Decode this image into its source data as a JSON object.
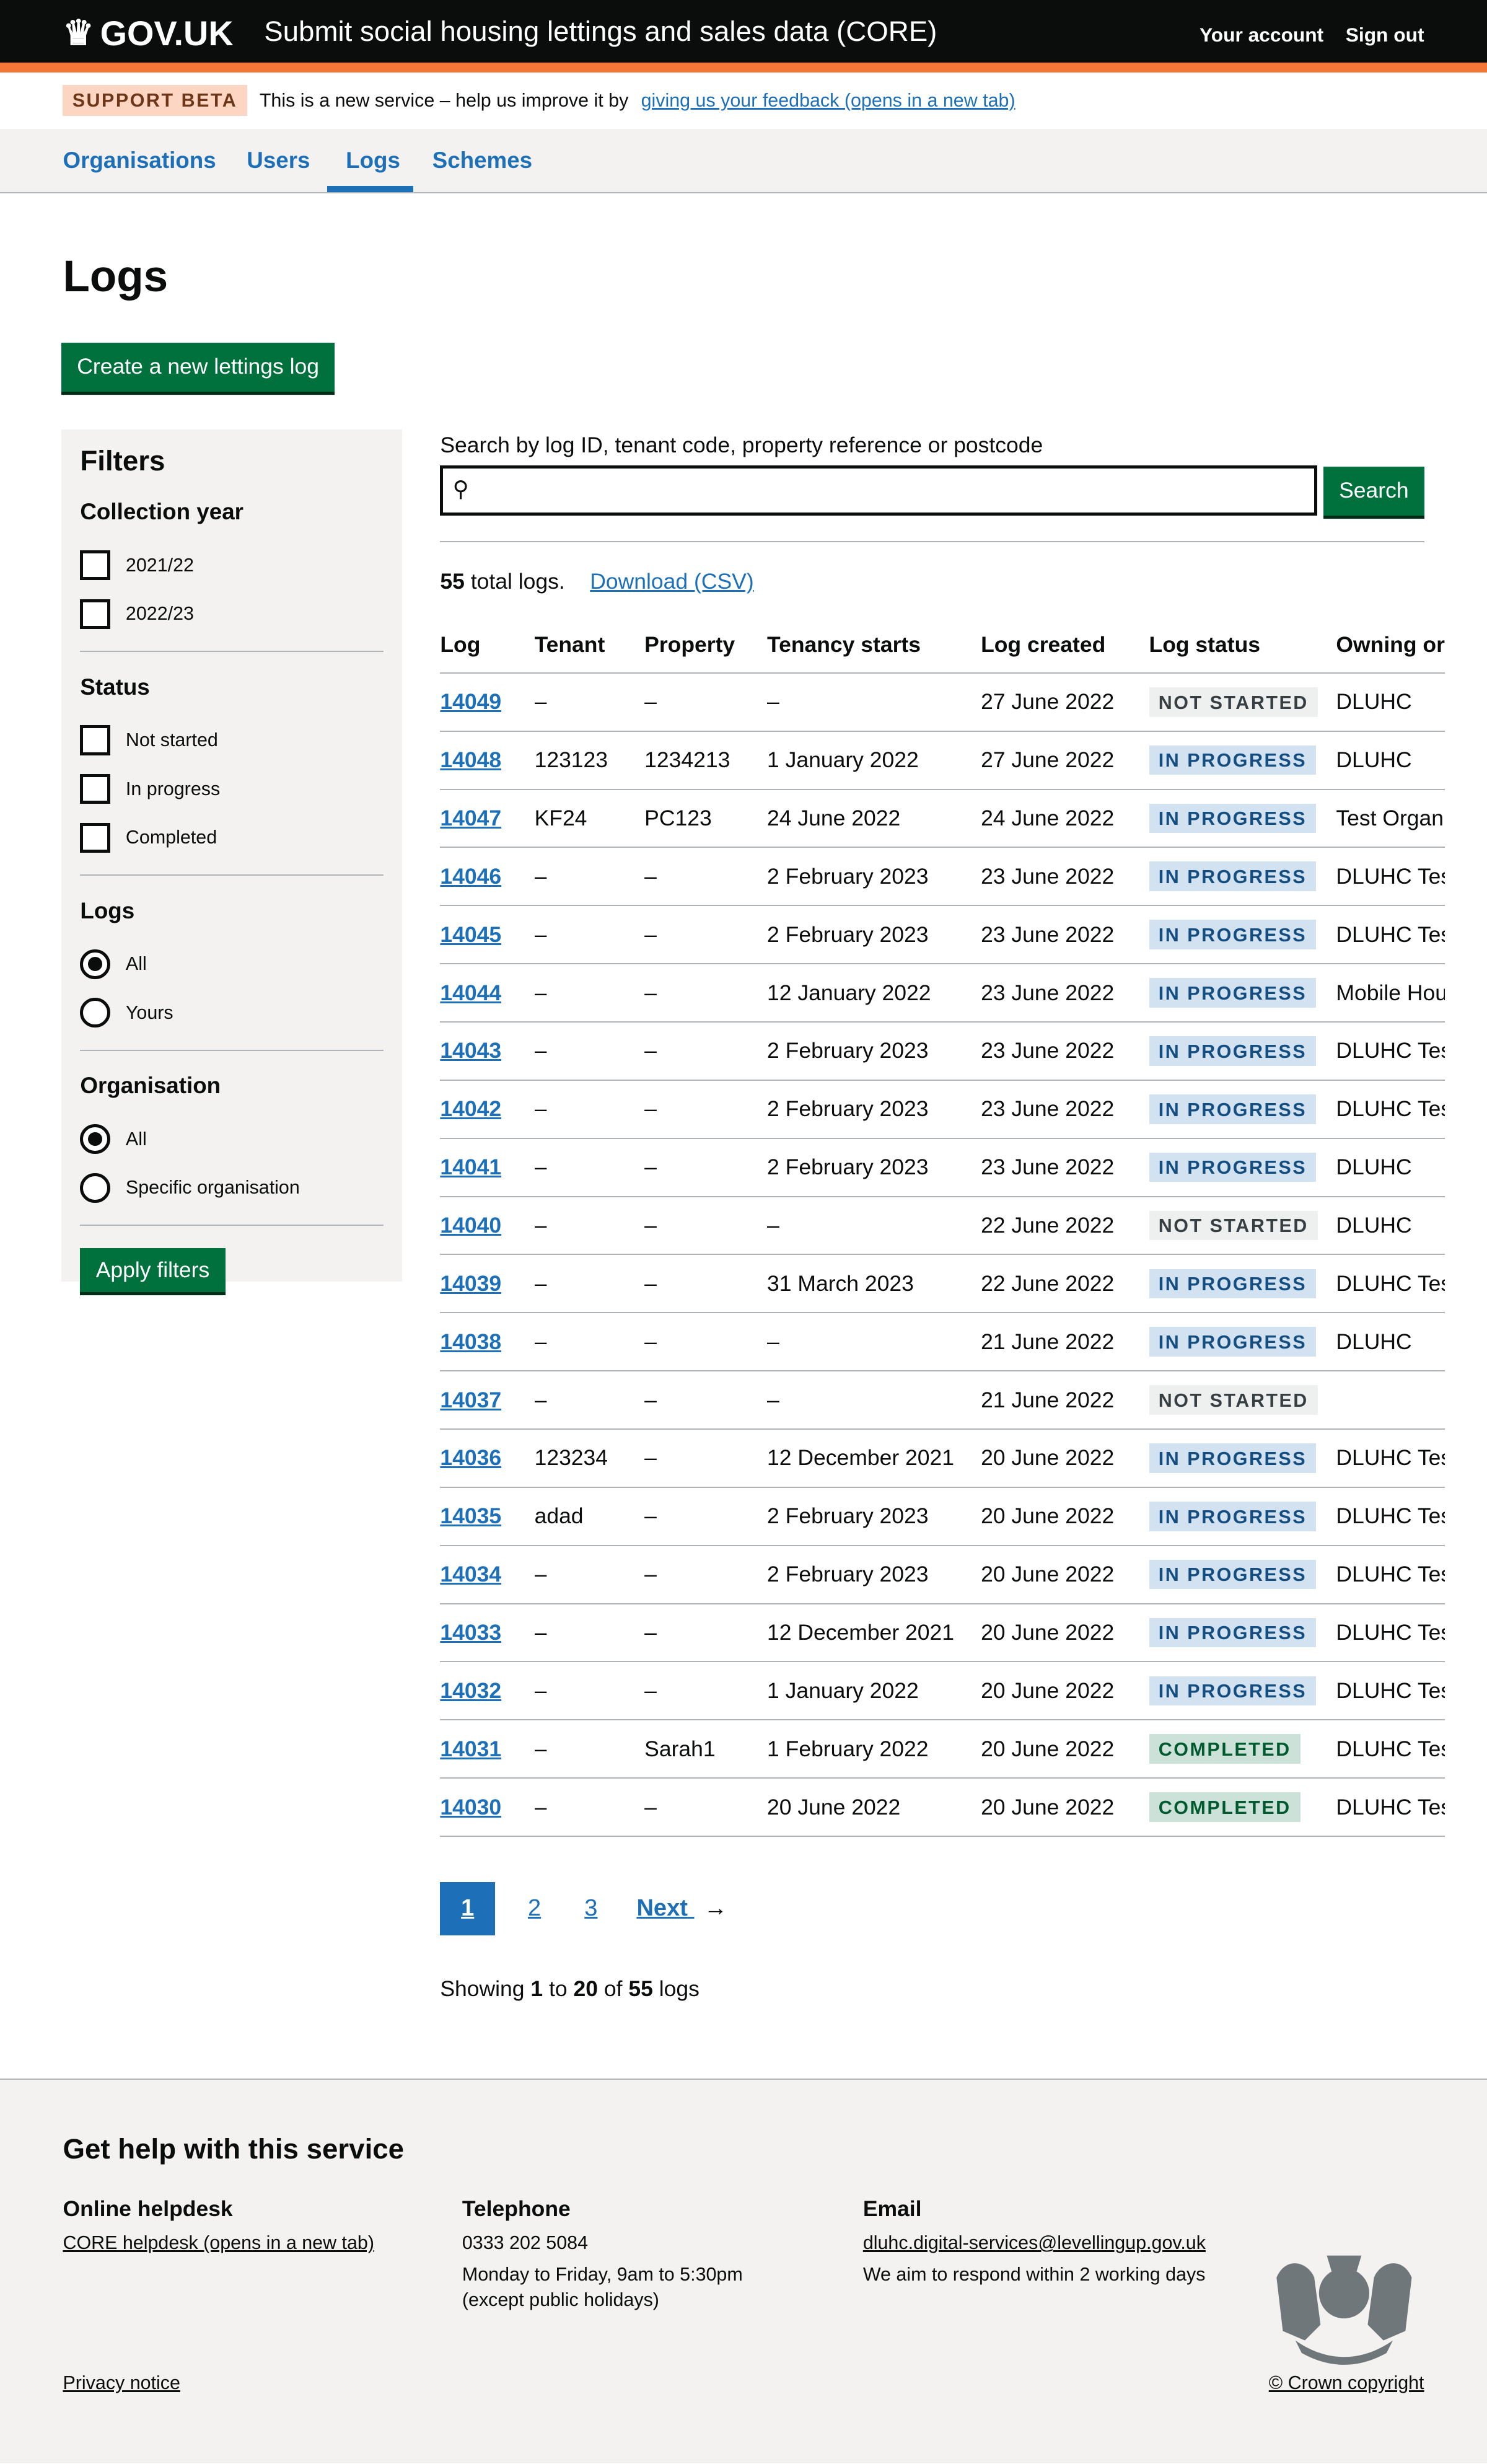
{
  "header": {
    "logo": "GOV.UK",
    "service": "Submit social housing lettings and sales data (CORE)",
    "your_account": "Your account",
    "sign_out": "Sign out"
  },
  "banner": {
    "tag": "SUPPORT BETA",
    "text": "This is a new service – help us improve it by",
    "link": "giving us your feedback (opens in a new tab)"
  },
  "nav": {
    "items": [
      "Organisations",
      "Users",
      "Logs",
      "Schemes"
    ],
    "active": "Logs"
  },
  "page": {
    "title": "Logs",
    "create_button": "Create a new lettings log"
  },
  "filters": {
    "title": "Filters",
    "collection_year": {
      "label": "Collection year",
      "options": [
        "2021/22",
        "2022/23"
      ]
    },
    "status": {
      "label": "Status",
      "options": [
        "Not started",
        "In progress",
        "Completed"
      ]
    },
    "logs": {
      "label": "Logs",
      "options": [
        "All",
        "Yours"
      ],
      "selected": "All"
    },
    "organisation": {
      "label": "Organisation",
      "options": [
        "All",
        "Specific organisation"
      ],
      "selected": "All"
    },
    "apply": "Apply filters"
  },
  "search": {
    "label": "Search by log ID, tenant code, property reference or postcode",
    "value": "",
    "button": "Search"
  },
  "summary": {
    "count": "55",
    "count_suffix": "total logs.",
    "download": "Download (CSV)"
  },
  "table": {
    "headers": [
      "Log",
      "Tenant",
      "Property",
      "Tenancy starts",
      "Log created",
      "Log status",
      "Owning or"
    ],
    "rows": [
      [
        "14049",
        "–",
        "–",
        "–",
        "27 June 2022",
        "NOT STARTED",
        "DLUHC"
      ],
      [
        "14048",
        "123123",
        "1234213",
        "1 January 2022",
        "27 June 2022",
        "IN PROGRESS",
        "DLUHC"
      ],
      [
        "14047",
        "KF24",
        "PC123",
        "24 June 2022",
        "24 June 2022",
        "IN PROGRESS",
        "Test Organ"
      ],
      [
        "14046",
        "–",
        "–",
        "2 February 2023",
        "23 June 2022",
        "IN PROGRESS",
        "DLUHC Tes"
      ],
      [
        "14045",
        "–",
        "–",
        "2 February 2023",
        "23 June 2022",
        "IN PROGRESS",
        "DLUHC Tes"
      ],
      [
        "14044",
        "–",
        "–",
        "12 January 2022",
        "23 June 2022",
        "IN PROGRESS",
        "Mobile Hou"
      ],
      [
        "14043",
        "–",
        "–",
        "2 February 2023",
        "23 June 2022",
        "IN PROGRESS",
        "DLUHC Tes"
      ],
      [
        "14042",
        "–",
        "–",
        "2 February 2023",
        "23 June 2022",
        "IN PROGRESS",
        "DLUHC Tes"
      ],
      [
        "14041",
        "–",
        "–",
        "2 February 2023",
        "23 June 2022",
        "IN PROGRESS",
        "DLUHC"
      ],
      [
        "14040",
        "–",
        "–",
        "–",
        "22 June 2022",
        "NOT STARTED",
        "DLUHC"
      ],
      [
        "14039",
        "–",
        "–",
        "31 March 2023",
        "22 June 2022",
        "IN PROGRESS",
        "DLUHC Tes"
      ],
      [
        "14038",
        "–",
        "–",
        "–",
        "21 June 2022",
        "IN PROGRESS",
        "DLUHC"
      ],
      [
        "14037",
        "–",
        "–",
        "–",
        "21 June 2022",
        "NOT STARTED",
        ""
      ],
      [
        "14036",
        "123234",
        "–",
        "12 December 2021",
        "20 June 2022",
        "IN PROGRESS",
        "DLUHC Tes"
      ],
      [
        "14035",
        "adad",
        "–",
        "2 February 2023",
        "20 June 2022",
        "IN PROGRESS",
        "DLUHC Tes"
      ],
      [
        "14034",
        "–",
        "–",
        "2 February 2023",
        "20 June 2022",
        "IN PROGRESS",
        "DLUHC Tes"
      ],
      [
        "14033",
        "–",
        "–",
        "12 December 2021",
        "20 June 2022",
        "IN PROGRESS",
        "DLUHC Tes"
      ],
      [
        "14032",
        "–",
        "–",
        "1 January 2022",
        "20 June 2022",
        "IN PROGRESS",
        "DLUHC Tes"
      ],
      [
        "14031",
        "–",
        "Sarah1",
        "1 February 2022",
        "20 June 2022",
        "COMPLETED",
        "DLUHC Tes"
      ],
      [
        "14030",
        "–",
        "–",
        "20 June 2022",
        "20 June 2022",
        "COMPLETED",
        "DLUHC Tes"
      ]
    ]
  },
  "status_colors": {
    "NOT STARTED": {
      "bg": "#eeefef",
      "fg": "#383f43"
    },
    "IN PROGRESS": {
      "bg": "#d2e2f1",
      "fg": "#144e81"
    },
    "COMPLETED": {
      "bg": "#cce2d8",
      "fg": "#005a30"
    }
  },
  "pagination": {
    "pages": [
      "1",
      "2",
      "3"
    ],
    "current": "1",
    "next": "Next"
  },
  "showing": {
    "prefix": "Showing",
    "from": "1",
    "to_word": "to",
    "to": "20",
    "of_word": "of",
    "total": "55",
    "suffix": "logs"
  },
  "footer": {
    "title": "Get help with this service",
    "helpdesk": {
      "title": "Online helpdesk",
      "link": "CORE helpdesk (opens in a new tab)"
    },
    "telephone": {
      "title": "Telephone",
      "number": "0333 202 5084",
      "hours": "Monday to Friday, 9am to 5:30pm",
      "note": "(except public holidays)"
    },
    "email": {
      "title": "Email",
      "address": "dluhc.digital-services@levellingup.gov.uk",
      "note": "We aim to respond within 2 working days"
    },
    "privacy": "Privacy notice",
    "copyright": "© Crown copyright"
  }
}
